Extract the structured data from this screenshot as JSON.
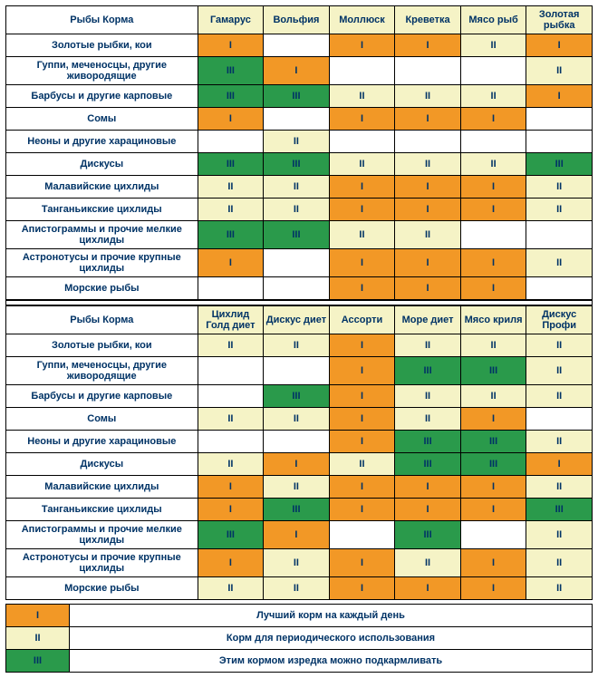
{
  "colors": {
    "I": "#f29826",
    "II": "#f5f3c6",
    "III": "#2a9a4b",
    "blank": "#ffffff",
    "header_bg": "#f5f3c6",
    "text": "#003366"
  },
  "header_label": "Рыбы     Корма",
  "section1": {
    "columns": [
      "Гамарус",
      "Вольфия",
      "Моллюск",
      "Креветка",
      "Мясо рыб",
      "Золотая рыбка"
    ],
    "rows": [
      {
        "fish": "Золотые рыбки, кои",
        "cells": [
          "I",
          "",
          "I",
          "I",
          "II",
          "I"
        ]
      },
      {
        "fish": "Гуппи, меченосцы, другие живородящие",
        "cells": [
          "III",
          "I",
          "",
          "",
          "",
          "II"
        ]
      },
      {
        "fish": "Барбусы  и другие карповые",
        "cells": [
          "III",
          "III",
          "II",
          "II",
          "II",
          "I"
        ]
      },
      {
        "fish": "Сомы",
        "cells": [
          "I",
          "",
          "I",
          "I",
          "I",
          ""
        ]
      },
      {
        "fish": "Неоны и другие харациновые",
        "cells": [
          "",
          "II",
          "",
          "",
          "",
          ""
        ]
      },
      {
        "fish": "Дискусы",
        "cells": [
          "III",
          "III",
          "II",
          "II",
          "II",
          "III"
        ]
      },
      {
        "fish": "Малавийские цихлиды",
        "cells": [
          "II",
          "II",
          "I",
          "I",
          "I",
          "II"
        ]
      },
      {
        "fish": "Танганьикские цихлиды",
        "cells": [
          "II",
          "II",
          "I",
          "I",
          "I",
          "II"
        ]
      },
      {
        "fish": "Апистограммы и прочие мелкие цихлиды",
        "cells": [
          "III",
          "III",
          "II",
          "II",
          "",
          ""
        ]
      },
      {
        "fish": "Астронотусы и прочие крупные цихлиды",
        "cells": [
          "I",
          "",
          "I",
          "I",
          "I",
          "II"
        ]
      },
      {
        "fish": "Морские рыбы",
        "cells": [
          "",
          "",
          "I",
          "I",
          "I",
          ""
        ]
      }
    ]
  },
  "section2": {
    "columns": [
      "Цихлид Голд диет",
      "Дискус диет",
      "Ассорти",
      "Море диет",
      "Мясо криля",
      "Дискус Профи"
    ],
    "rows": [
      {
        "fish": "Золотые рыбки, кои",
        "cells": [
          "II",
          "II",
          "I",
          "II",
          "II",
          "II"
        ]
      },
      {
        "fish": "Гуппи, меченосцы, другие живородящие",
        "cells": [
          "",
          "",
          "I",
          "III",
          "III",
          "II"
        ]
      },
      {
        "fish": "Барбусы  и другие карповые",
        "cells": [
          "",
          "III",
          "I",
          "II",
          "II",
          "II"
        ]
      },
      {
        "fish": "Сомы",
        "cells": [
          "II",
          "II",
          "I",
          "II",
          "I",
          ""
        ]
      },
      {
        "fish": "Неоны и другие харациновые",
        "cells": [
          "",
          "",
          "I",
          "III",
          "III",
          "II"
        ]
      },
      {
        "fish": "Дискусы",
        "cells": [
          "II",
          "I",
          "II",
          "III",
          "III",
          "I"
        ]
      },
      {
        "fish": "Малавийские цихлиды",
        "cells": [
          "I",
          "II",
          "I",
          "I",
          "I",
          "II"
        ]
      },
      {
        "fish": "Танганьикские цихлиды",
        "cells": [
          "I",
          "III",
          "I",
          "I",
          "I",
          "III"
        ]
      },
      {
        "fish": "Апистограммы и прочие мелкие цихлиды",
        "cells": [
          "III",
          "I",
          "",
          "III",
          "",
          "II"
        ]
      },
      {
        "fish": "Астронотусы и прочие крупные цихлиды",
        "cells": [
          "I",
          "II",
          "I",
          "II",
          "I",
          "II"
        ]
      },
      {
        "fish": "Морские рыбы",
        "cells": [
          "II",
          "II",
          "I",
          "I",
          "I",
          "II"
        ]
      }
    ]
  },
  "legend": [
    {
      "level": "I",
      "text": "Лучший корм на каждый день"
    },
    {
      "level": "II",
      "text": "Корм для периодического использования"
    },
    {
      "level": "III",
      "text": "Этим кормом изредка можно подкармливать"
    }
  ]
}
